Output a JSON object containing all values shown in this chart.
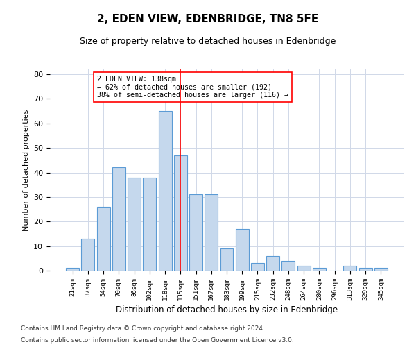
{
  "title": "2, EDEN VIEW, EDENBRIDGE, TN8 5FE",
  "subtitle": "Size of property relative to detached houses in Edenbridge",
  "xlabel": "Distribution of detached houses by size in Edenbridge",
  "ylabel": "Number of detached properties",
  "categories": [
    "21sqm",
    "37sqm",
    "54sqm",
    "70sqm",
    "86sqm",
    "102sqm",
    "118sqm",
    "135sqm",
    "151sqm",
    "167sqm",
    "183sqm",
    "199sqm",
    "215sqm",
    "232sqm",
    "248sqm",
    "264sqm",
    "280sqm",
    "296sqm",
    "313sqm",
    "329sqm",
    "345sqm"
  ],
  "values": [
    1,
    13,
    26,
    42,
    38,
    38,
    65,
    47,
    31,
    31,
    9,
    17,
    3,
    6,
    4,
    2,
    1,
    0,
    2,
    1,
    1
  ],
  "bar_color": "#c5d8ed",
  "bar_edge_color": "#5b9bd5",
  "red_line_index": 7,
  "annotation_text": "2 EDEN VIEW: 138sqm\n← 62% of detached houses are smaller (192)\n38% of semi-detached houses are larger (116) →",
  "ylim": [
    0,
    82
  ],
  "yticks": [
    0,
    10,
    20,
    30,
    40,
    50,
    60,
    70,
    80
  ],
  "footer1": "Contains HM Land Registry data © Crown copyright and database right 2024.",
  "footer2": "Contains public sector information licensed under the Open Government Licence v3.0.",
  "bg_color": "#ffffff",
  "grid_color": "#d0d8e8"
}
